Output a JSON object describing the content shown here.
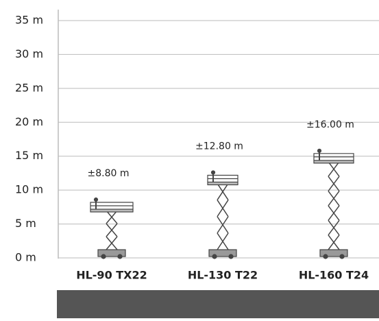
{
  "chart_data": {
    "type": "lift",
    "categories": [
      "HL-90 TX22",
      "HL-130 T22",
      "HL-160 T24"
    ],
    "values": [
      8.8,
      12.8,
      16.0
    ],
    "value_labels": [
      "±8.80 m",
      "±12.80 m",
      "±16.00 m"
    ],
    "ylim": [
      0,
      35
    ],
    "yticks": [
      {
        "value": 0,
        "label": "0 m"
      },
      {
        "value": 5,
        "label": "5 m"
      },
      {
        "value": 10,
        "label": "10 m"
      },
      {
        "value": 15,
        "label": "15 m"
      },
      {
        "value": 20,
        "label": "20 m"
      },
      {
        "value": 25,
        "label": "25 m"
      },
      {
        "value": 30,
        "label": "30 m"
      },
      {
        "value": 35,
        "label": "35 m"
      }
    ],
    "grid": true,
    "color": "#444444"
  }
}
